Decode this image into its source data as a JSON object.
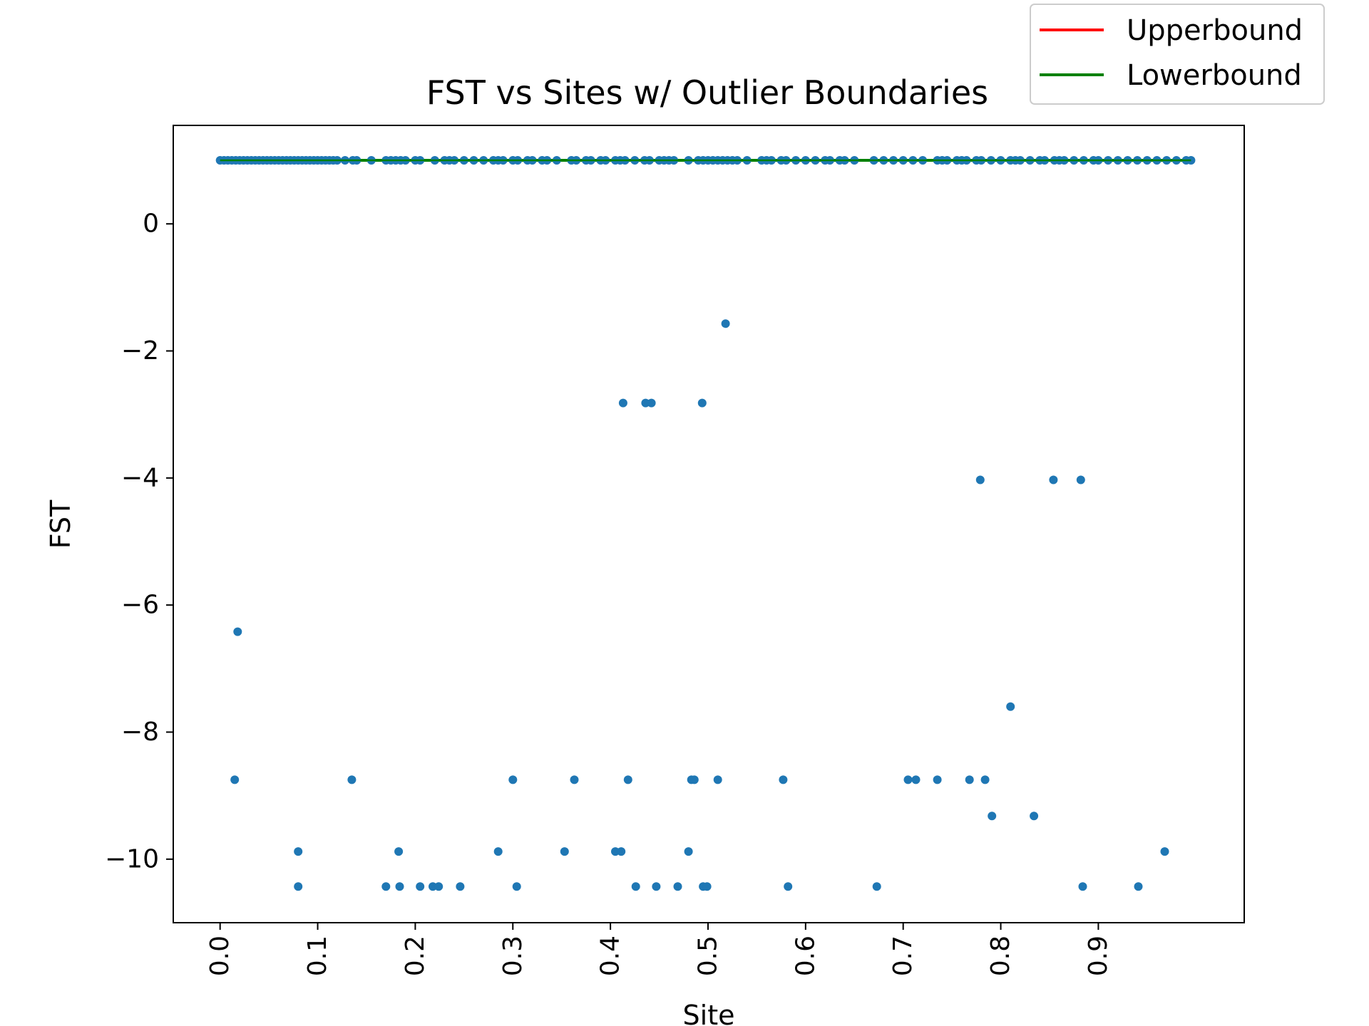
{
  "chart_data": {
    "type": "scatter",
    "title": "FST vs Sites w/ Outlier Boundaries",
    "xlabel": "Site",
    "ylabel": "FST",
    "xlim": [
      -0.048,
      1.0495
    ],
    "ylim": [
      -11.0,
      1.55
    ],
    "x_ticks": [
      "0.0",
      "0.1",
      "0.2",
      "0.3",
      "0.4",
      "0.5",
      "0.6",
      "0.7",
      "0.8",
      "0.9"
    ],
    "x_tick_values": [
      0.0,
      0.1,
      0.2,
      0.3,
      0.4,
      0.5,
      0.6,
      0.7,
      0.8,
      0.9
    ],
    "y_ticks": [
      "0",
      "−2",
      "−4",
      "−6",
      "−8",
      "−10"
    ],
    "y_tick_values": [
      0,
      -2,
      -4,
      -6,
      -8,
      -10
    ],
    "grid": false,
    "legend_position": "top-right",
    "legend": [
      {
        "name": "Upperbound",
        "color": "#ff0000"
      },
      {
        "name": "Lowerbound",
        "color": "#008000"
      }
    ],
    "lines": [
      {
        "name": "Upperbound",
        "color": "#ff0000",
        "x": [
          0.0,
          0.995
        ],
        "y": [
          1.0,
          1.0
        ]
      },
      {
        "name": "Lowerbound",
        "color": "#008000",
        "x": [
          0.0,
          0.995
        ],
        "y": [
          1.0,
          1.0
        ]
      }
    ],
    "point_color": "#1f77b4",
    "points": {
      "x": [
        0.0,
        0.004,
        0.008,
        0.012,
        0.016,
        0.02,
        0.024,
        0.028,
        0.032,
        0.036,
        0.04,
        0.044,
        0.048,
        0.052,
        0.056,
        0.06,
        0.064,
        0.068,
        0.072,
        0.076,
        0.08,
        0.084,
        0.088,
        0.092,
        0.096,
        0.1,
        0.104,
        0.108,
        0.112,
        0.116,
        0.12,
        0.128,
        0.136,
        0.14,
        0.155,
        0.17,
        0.175,
        0.18,
        0.185,
        0.19,
        0.2,
        0.205,
        0.22,
        0.23,
        0.235,
        0.24,
        0.25,
        0.26,
        0.27,
        0.28,
        0.285,
        0.29,
        0.3,
        0.305,
        0.315,
        0.32,
        0.33,
        0.335,
        0.345,
        0.36,
        0.365,
        0.375,
        0.38,
        0.39,
        0.395,
        0.405,
        0.41,
        0.415,
        0.425,
        0.435,
        0.44,
        0.45,
        0.455,
        0.46,
        0.465,
        0.48,
        0.49,
        0.495,
        0.5,
        0.505,
        0.51,
        0.515,
        0.52,
        0.525,
        0.53,
        0.54,
        0.555,
        0.56,
        0.565,
        0.575,
        0.58,
        0.59,
        0.6,
        0.61,
        0.62,
        0.625,
        0.635,
        0.64,
        0.65,
        0.67,
        0.68,
        0.69,
        0.7,
        0.71,
        0.72,
        0.735,
        0.74,
        0.745,
        0.755,
        0.76,
        0.765,
        0.775,
        0.78,
        0.79,
        0.8,
        0.81,
        0.815,
        0.82,
        0.83,
        0.84,
        0.845,
        0.855,
        0.86,
        0.865,
        0.875,
        0.885,
        0.895,
        0.9,
        0.91,
        0.92,
        0.93,
        0.94,
        0.95,
        0.96,
        0.97,
        0.98,
        0.99,
        0.995,
        0.018,
        0.015,
        0.08,
        0.08,
        0.135,
        0.17,
        0.183,
        0.184,
        0.205,
        0.218,
        0.224,
        0.246,
        0.285,
        0.3,
        0.304,
        0.353,
        0.363,
        0.405,
        0.413,
        0.411,
        0.418,
        0.426,
        0.436,
        0.442,
        0.447,
        0.469,
        0.48,
        0.483,
        0.486,
        0.494,
        0.495,
        0.499,
        0.51,
        0.518,
        0.577,
        0.582,
        0.673,
        0.705,
        0.713,
        0.735,
        0.768,
        0.779,
        0.784,
        0.791,
        0.81,
        0.834,
        0.854,
        0.882,
        0.884,
        0.941,
        0.968
      ],
      "y": [
        1,
        1,
        1,
        1,
        1,
        1,
        1,
        1,
        1,
        1,
        1,
        1,
        1,
        1,
        1,
        1,
        1,
        1,
        1,
        1,
        1,
        1,
        1,
        1,
        1,
        1,
        1,
        1,
        1,
        1,
        1,
        1,
        1,
        1,
        1,
        1,
        1,
        1,
        1,
        1,
        1,
        1,
        1,
        1,
        1,
        1,
        1,
        1,
        1,
        1,
        1,
        1,
        1,
        1,
        1,
        1,
        1,
        1,
        1,
        1,
        1,
        1,
        1,
        1,
        1,
        1,
        1,
        1,
        1,
        1,
        1,
        1,
        1,
        1,
        1,
        1,
        1,
        1,
        1,
        1,
        1,
        1,
        1,
        1,
        1,
        1,
        1,
        1,
        1,
        1,
        1,
        1,
        1,
        1,
        1,
        1,
        1,
        1,
        1,
        1,
        1,
        1,
        1,
        1,
        1,
        1,
        1,
        1,
        1,
        1,
        1,
        1,
        1,
        1,
        1,
        1,
        1,
        1,
        1,
        1,
        1,
        1,
        1,
        1,
        1,
        1,
        1,
        1,
        1,
        1,
        1,
        1,
        1,
        1,
        1,
        1,
        1,
        1,
        -6.42,
        -8.75,
        -9.88,
        -10.43,
        -8.75,
        -10.43,
        -9.88,
        -10.43,
        -10.43,
        -10.43,
        -10.43,
        -10.43,
        -9.88,
        -8.75,
        -10.43,
        -9.88,
        -8.75,
        -9.88,
        -2.82,
        -9.88,
        -8.75,
        -10.43,
        -2.82,
        -2.82,
        -10.43,
        -10.43,
        -9.88,
        -8.75,
        -8.75,
        -2.82,
        -10.43,
        -10.43,
        -8.75,
        -1.57,
        -8.75,
        -10.43,
        -10.43,
        -8.75,
        -8.75,
        -8.75,
        -8.75,
        -4.03,
        -8.75,
        -9.32,
        -7.6,
        -9.32,
        -4.03,
        -4.03,
        -10.43,
        -10.43,
        -9.88
      ]
    }
  }
}
